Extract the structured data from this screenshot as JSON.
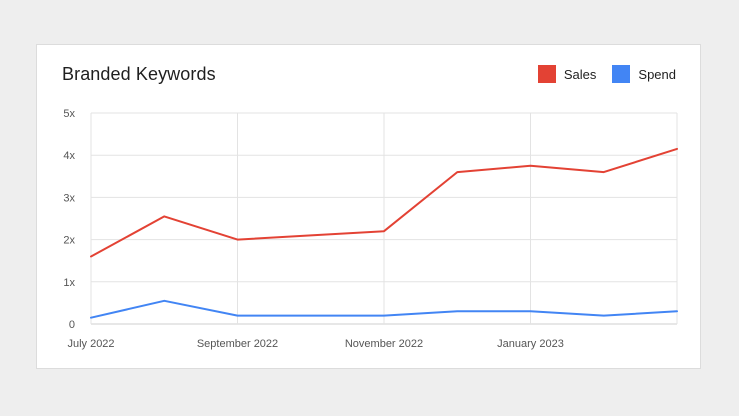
{
  "card": {
    "title": "Branded Keywords"
  },
  "legend": [
    {
      "label": "Sales",
      "color": "#e34234"
    },
    {
      "label": "Spend",
      "color": "#4285f4"
    }
  ],
  "chart_data": {
    "type": "line",
    "title": "Branded Keywords",
    "xlabel": "",
    "ylabel": "",
    "x": [
      "2022-07",
      "2022-08",
      "2022-09",
      "2022-10",
      "2022-11",
      "2022-12",
      "2023-01",
      "2023-02",
      "2023-03"
    ],
    "x_tick_labels": [
      "July 2022",
      "September 2022",
      "November 2022",
      "January 2023"
    ],
    "y_ticks": [
      0,
      1,
      2,
      3,
      4,
      5
    ],
    "y_tick_labels": [
      "0",
      "1x",
      "2x",
      "3x",
      "4x",
      "5x"
    ],
    "ylim": [
      0,
      5
    ],
    "grid": true,
    "legend_position": "top-right",
    "series": [
      {
        "name": "Sales",
        "color": "#e34234",
        "values": [
          1.6,
          2.55,
          2.0,
          2.1,
          2.2,
          3.6,
          3.75,
          3.6,
          4.15
        ]
      },
      {
        "name": "Spend",
        "color": "#4285f4",
        "values": [
          0.15,
          0.55,
          0.2,
          0.2,
          0.2,
          0.3,
          0.3,
          0.2,
          0.3
        ]
      }
    ]
  }
}
